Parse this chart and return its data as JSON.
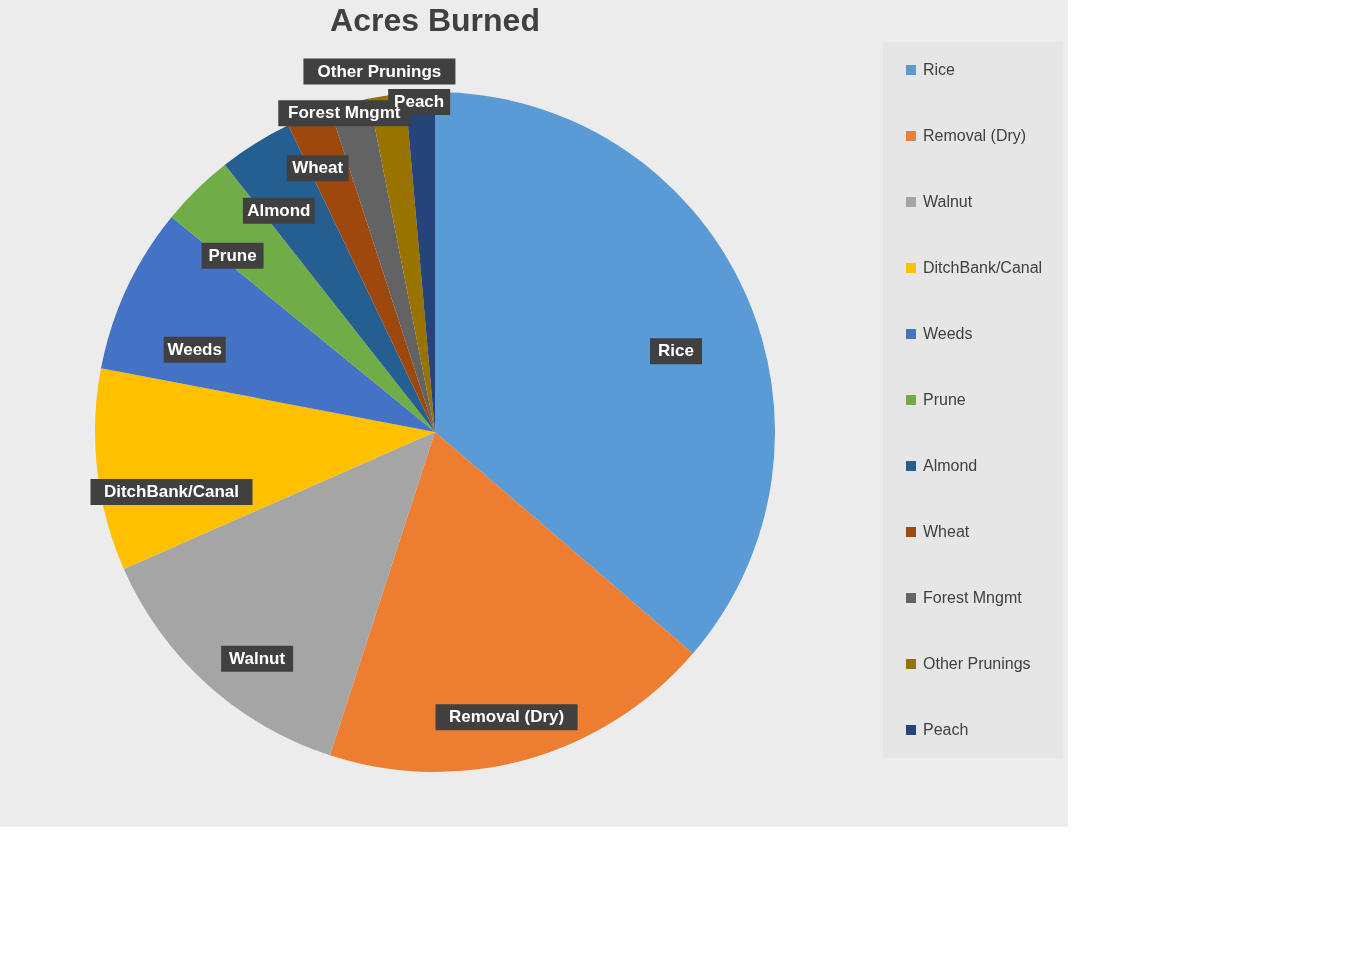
{
  "chart_data": {
    "type": "pie",
    "title": "Acres Burned",
    "categories": [
      "Rice",
      "Removal (Dry)",
      "Walnut",
      "DitchBank/Canal",
      "Weeds",
      "Prune",
      "Almond",
      "Wheat",
      "Forest Mngmt",
      "Other Prunings",
      "Peach"
    ],
    "values": [
      36.3,
      18.7,
      13.4,
      9.6,
      7.9,
      3.5,
      3.5,
      2.1,
      1.9,
      1.7,
      1.4
    ],
    "colors": [
      "#5b9bd5",
      "#ed7d31",
      "#a5a5a5",
      "#ffc000",
      "#4472c4",
      "#70ad47",
      "#255e91",
      "#9e480e",
      "#636363",
      "#997300",
      "#264478"
    ],
    "legend": "right"
  }
}
